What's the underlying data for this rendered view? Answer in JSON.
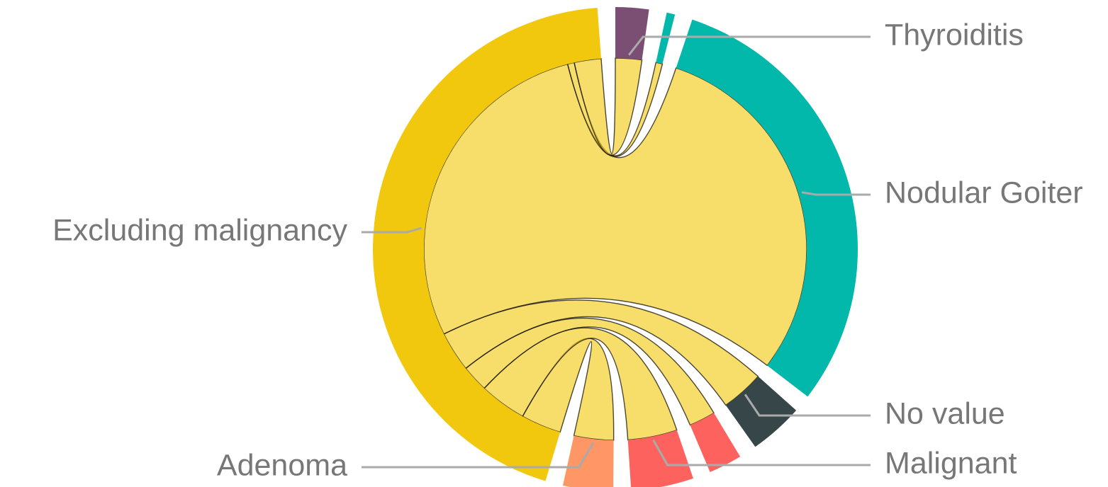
{
  "chart_data": {
    "type": "chord",
    "groups": [
      {
        "name": "Thyroiditis",
        "color": "#7b4f74",
        "value": 8
      },
      {
        "name": null,
        "color": "#01b8aa",
        "value": 2
      },
      {
        "name": "Nodular Goiter",
        "color": "#01b8aa",
        "value": 109
      },
      {
        "name": "No value",
        "color": "#374649",
        "value": 13
      },
      {
        "name": null,
        "color": "#fd625e",
        "value": 8
      },
      {
        "name": "Malignant",
        "color": "#fd625e",
        "value": 15
      },
      {
        "name": "Adenoma",
        "color": "#fe9666",
        "value": 12
      },
      {
        "name": "Excluding malignancy",
        "color": "#f2c80f",
        "value": 159
      }
    ],
    "links": [
      {
        "source": 7,
        "target": 6,
        "value": 12
      },
      {
        "source": 7,
        "target": 5,
        "value": 14
      },
      {
        "source": 7,
        "target": 4,
        "value": 8
      },
      {
        "source": 7,
        "target": 3,
        "value": 12
      },
      {
        "source": 7,
        "target": 2,
        "value": 100
      },
      {
        "source": 7,
        "target": 1,
        "value": 2
      },
      {
        "source": 7,
        "target": 0,
        "value": 8
      }
    ]
  }
}
